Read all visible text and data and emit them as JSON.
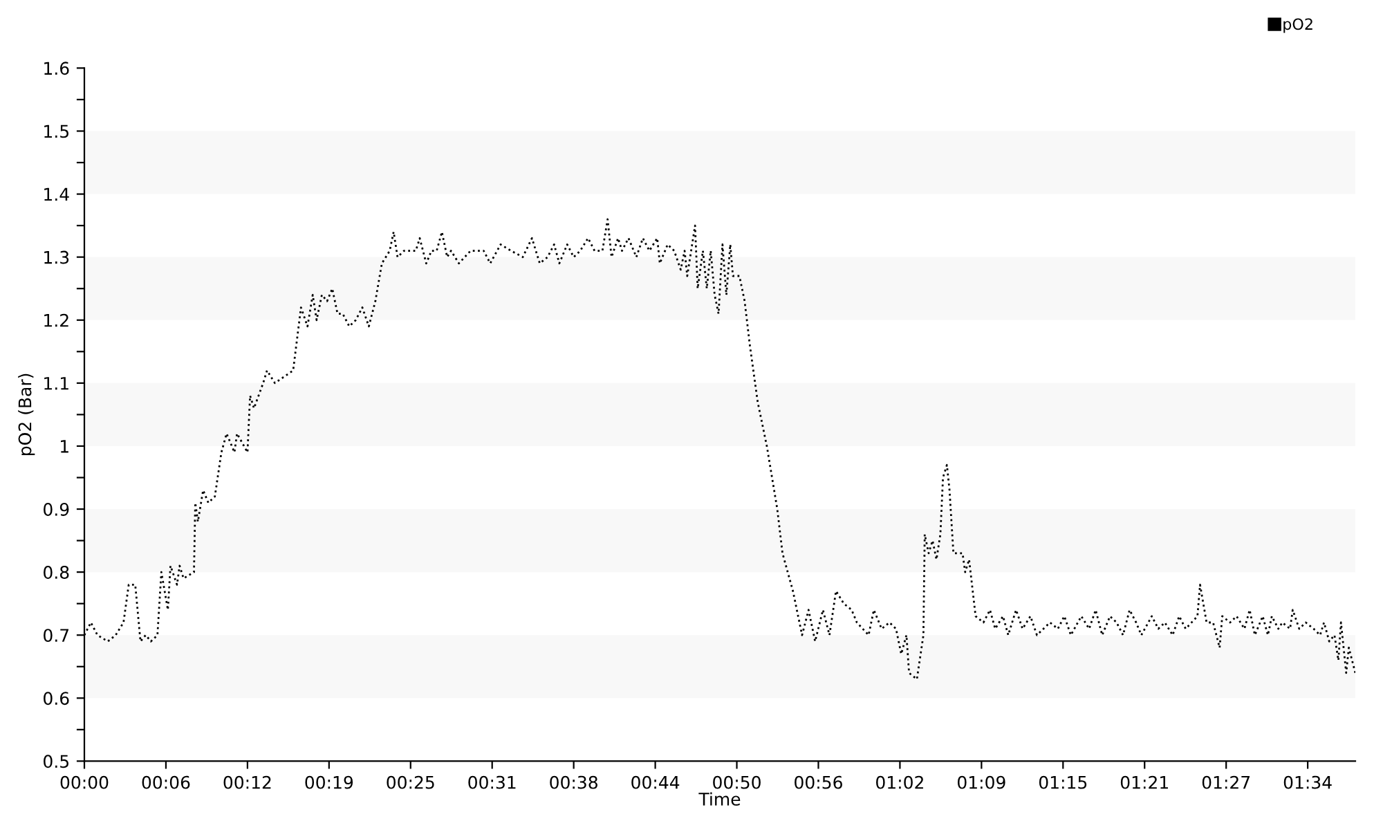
{
  "chart_data": {
    "type": "line",
    "xlabel": "Time",
    "ylabel": "pO2 (Bar)",
    "x": [
      0,
      0.5,
      1.0,
      1.8,
      2.4,
      3.0,
      3.4,
      3.9,
      4.3,
      4.7,
      5.1,
      5.6,
      5.9,
      6.4,
      6.6,
      7.1,
      7.3,
      7.6,
      8.4,
      8.5,
      8.7,
      9.1,
      9.5,
      10.0,
      10.5,
      10.9,
      11.5,
      11.7,
      12.5,
      12.7,
      13.0,
      13.7,
      14.0,
      14.6,
      16.0,
      16.6,
      17.1,
      17.5,
      17.8,
      18.2,
      18.6,
      19.0,
      19.4,
      19.8,
      20.3,
      20.8,
      21.3,
      21.8,
      22.3,
      22.8,
      23.4,
      23.7,
      24.0,
      24.5,
      25.4,
      25.7,
      26.2,
      26.6,
      27.0,
      27.4,
      27.8,
      28.1,
      28.7,
      29.6,
      30.6,
      31.1,
      31.9,
      32.7,
      33.6,
      34.3,
      34.9,
      35.5,
      36.0,
      36.4,
      37.0,
      37.5,
      38.0,
      38.6,
      39.1,
      39.7,
      40.1,
      40.4,
      40.9,
      41.2,
      41.7,
      42.3,
      42.8,
      43.3,
      43.9,
      44.1,
      44.7,
      45.2,
      45.7,
      46.0,
      46.2,
      46.8,
      47.0,
      47.4,
      47.7,
      48.0,
      48.3,
      48.6,
      48.9,
      49.2,
      49.5,
      49.7,
      50.2,
      50.6,
      51.0,
      51.6,
      52.3,
      53.1,
      53.5,
      53.9,
      54.3,
      54.7,
      55.0,
      55.5,
      56.0,
      56.6,
      57.1,
      57.6,
      58.2,
      58.8,
      59.2,
      60.1,
      60.5,
      61.1,
      61.7,
      62.2,
      62.6,
      63.0,
      63.2,
      63.8,
      64.3,
      64.4,
      64.7,
      65.0,
      65.3,
      65.6,
      65.8,
      66.1,
      66.3,
      66.6,
      67.3,
      67.5,
      67.8,
      68.3,
      68.9,
      69.4,
      69.8,
      70.4,
      70.8,
      71.4,
      71.9,
      72.5,
      73.0,
      73.5,
      74.0,
      74.6,
      75.1,
      75.6,
      76.4,
      77.0,
      77.5,
      78.0,
      78.6,
      79.1,
      79.6,
      80.1,
      80.6,
      81.0,
      81.8,
      82.3,
      82.8,
      83.4,
      83.9,
      84.4,
      85.3,
      85.5,
      86.0,
      86.5,
      87.0,
      87.2,
      87.8,
      88.3,
      88.9,
      89.3,
      89.7,
      90.3,
      90.7,
      91.0,
      91.5,
      91.8,
      92.4,
      92.6,
      93.1,
      93.6,
      94.2,
      94.7,
      95.0,
      95.4,
      95.8,
      96.1,
      96.3,
      96.7,
      96.9,
      97.4
    ],
    "series": [
      {
        "name": "pO2",
        "color": "#000000",
        "values": [
          0.7,
          0.72,
          0.7,
          0.69,
          0.7,
          0.72,
          0.78,
          0.78,
          0.69,
          0.7,
          0.69,
          0.7,
          0.8,
          0.74,
          0.81,
          0.78,
          0.81,
          0.79,
          0.8,
          0.91,
          0.88,
          0.93,
          0.91,
          0.92,
          0.99,
          1.02,
          0.99,
          1.02,
          0.99,
          1.08,
          1.06,
          1.1,
          1.12,
          1.1,
          1.12,
          1.22,
          1.19,
          1.24,
          1.2,
          1.24,
          1.23,
          1.25,
          1.21,
          1.21,
          1.19,
          1.2,
          1.22,
          1.19,
          1.23,
          1.29,
          1.31,
          1.34,
          1.3,
          1.31,
          1.31,
          1.33,
          1.29,
          1.31,
          1.31,
          1.34,
          1.3,
          1.31,
          1.29,
          1.31,
          1.31,
          1.29,
          1.32,
          1.31,
          1.3,
          1.33,
          1.29,
          1.3,
          1.32,
          1.29,
          1.32,
          1.3,
          1.31,
          1.33,
          1.31,
          1.31,
          1.36,
          1.3,
          1.33,
          1.31,
          1.33,
          1.3,
          1.33,
          1.31,
          1.33,
          1.29,
          1.32,
          1.31,
          1.28,
          1.31,
          1.27,
          1.35,
          1.25,
          1.31,
          1.25,
          1.31,
          1.24,
          1.21,
          1.32,
          1.24,
          1.32,
          1.27,
          1.27,
          1.23,
          1.16,
          1.07,
          1.0,
          0.9,
          0.83,
          0.8,
          0.77,
          0.73,
          0.7,
          0.74,
          0.69,
          0.74,
          0.7,
          0.77,
          0.75,
          0.74,
          0.72,
          0.7,
          0.74,
          0.71,
          0.72,
          0.71,
          0.67,
          0.7,
          0.64,
          0.63,
          0.7,
          0.86,
          0.83,
          0.85,
          0.82,
          0.86,
          0.95,
          0.97,
          0.93,
          0.83,
          0.83,
          0.8,
          0.82,
          0.73,
          0.72,
          0.74,
          0.71,
          0.73,
          0.7,
          0.74,
          0.71,
          0.73,
          0.7,
          0.71,
          0.72,
          0.71,
          0.73,
          0.7,
          0.73,
          0.71,
          0.74,
          0.7,
          0.73,
          0.72,
          0.7,
          0.74,
          0.72,
          0.7,
          0.73,
          0.71,
          0.72,
          0.7,
          0.73,
          0.71,
          0.73,
          0.78,
          0.72,
          0.72,
          0.68,
          0.73,
          0.72,
          0.73,
          0.71,
          0.74,
          0.7,
          0.73,
          0.7,
          0.73,
          0.71,
          0.72,
          0.71,
          0.74,
          0.71,
          0.72,
          0.71,
          0.7,
          0.72,
          0.69,
          0.7,
          0.66,
          0.72,
          0.64,
          0.68,
          0.64
        ]
      }
    ],
    "xlim": [
      0,
      97.4
    ],
    "xticks": [
      {
        "value": 0,
        "label": "00:00"
      },
      {
        "value": 6.25,
        "label": "00:06"
      },
      {
        "value": 12.5,
        "label": "00:12"
      },
      {
        "value": 18.75,
        "label": "00:19"
      },
      {
        "value": 25,
        "label": "00:25"
      },
      {
        "value": 31.25,
        "label": "00:31"
      },
      {
        "value": 37.5,
        "label": "00:38"
      },
      {
        "value": 43.75,
        "label": "00:44"
      },
      {
        "value": 50,
        "label": "00:50"
      },
      {
        "value": 56.25,
        "label": "00:56"
      },
      {
        "value": 62.5,
        "label": "01:02"
      },
      {
        "value": 68.75,
        "label": "01:09"
      },
      {
        "value": 75,
        "label": "01:15"
      },
      {
        "value": 81.25,
        "label": "01:21"
      },
      {
        "value": 87.5,
        "label": "01:27"
      },
      {
        "value": 93.75,
        "label": "01:34"
      }
    ],
    "ylim": [
      0.5,
      1.6
    ],
    "yticks": [
      {
        "value": 0.5,
        "label": "0.5"
      },
      {
        "value": 0.55,
        "label": null
      },
      {
        "value": 0.6,
        "label": "0.6"
      },
      {
        "value": 0.65,
        "label": null
      },
      {
        "value": 0.7,
        "label": "0.7"
      },
      {
        "value": 0.75,
        "label": null
      },
      {
        "value": 0.8,
        "label": "0.8"
      },
      {
        "value": 0.85,
        "label": null
      },
      {
        "value": 0.9,
        "label": "0.9"
      },
      {
        "value": 0.95,
        "label": null
      },
      {
        "value": 1,
        "label": "1"
      },
      {
        "value": 1.05,
        "label": null
      },
      {
        "value": 1.1,
        "label": "1.1"
      },
      {
        "value": 1.15,
        "label": null
      },
      {
        "value": 1.2,
        "label": "1.2"
      },
      {
        "value": 1.25,
        "label": null
      },
      {
        "value": 1.3,
        "label": "1.3"
      },
      {
        "value": 1.35,
        "label": null
      },
      {
        "value": 1.4,
        "label": "1.4"
      },
      {
        "value": 1.45,
        "label": null
      },
      {
        "value": 1.5,
        "label": "1.5"
      },
      {
        "value": 1.55,
        "label": null
      },
      {
        "value": 1.6,
        "label": "1.6"
      }
    ],
    "bands": [
      {
        "axis": "y",
        "from": 0.6,
        "to": 0.7,
        "color": "#f8f8f8"
      },
      {
        "axis": "y",
        "from": 0.8,
        "to": 0.9,
        "color": "#f8f8f8"
      },
      {
        "axis": "y",
        "from": 1.0,
        "to": 1.1,
        "color": "#f8f8f8"
      },
      {
        "axis": "y",
        "from": 1.2,
        "to": 1.3,
        "color": "#f8f8f8"
      },
      {
        "axis": "y",
        "from": 1.4,
        "to": 1.5,
        "color": "#f8f8f8"
      }
    ],
    "grid": false,
    "legend": "top right",
    "marker": "none",
    "line_style": "dotted"
  }
}
